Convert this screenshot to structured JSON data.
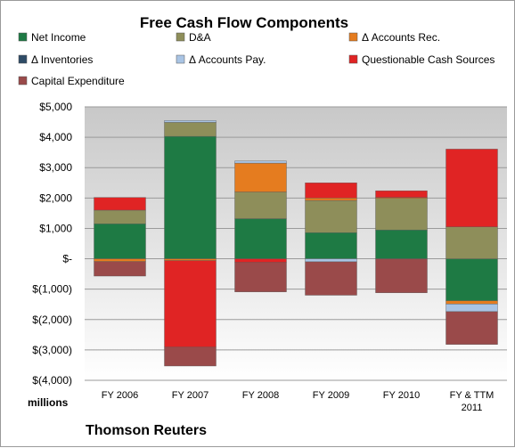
{
  "chart_data": {
    "type": "bar",
    "stacked": true,
    "title": "Free Cash Flow Components",
    "units_label": "millions",
    "source_label": "Thomson Reuters",
    "categories": [
      "FY 2006",
      "FY 2007",
      "FY 2008",
      "FY 2009",
      "FY 2010",
      "FY & TTM 2011"
    ],
    "ylim": [
      -4000,
      5000
    ],
    "yticks": [
      5000,
      4000,
      3000,
      2000,
      1000,
      0,
      -1000,
      -2000,
      -3000,
      -4000
    ],
    "ytick_labels": [
      "$5,000",
      "$4,000",
      "$3,000",
      "$2,000",
      "$1,000",
      "$-",
      "$(1,000)",
      "$(2,000)",
      "$(3,000)",
      "$(4,000)"
    ],
    "grid": true,
    "legend_position": "top",
    "series": [
      {
        "name": "Net Income",
        "color": "#1e7a44",
        "values": [
          1150,
          4030,
          1320,
          860,
          950,
          -1380
        ]
      },
      {
        "name": "D&A",
        "color": "#8e8e5a",
        "values": [
          450,
          460,
          880,
          1060,
          1040,
          1050
        ]
      },
      {
        "name": "Δ Accounts Rec.",
        "color": "#e57c1f",
        "values": [
          -90,
          -60,
          950,
          80,
          30,
          -110
        ]
      },
      {
        "name": "Δ Inventories",
        "color": "#2e4b66",
        "values": [
          0,
          0,
          0,
          0,
          0,
          0
        ]
      },
      {
        "name": "Δ Accounts Pay.",
        "color": "#a9c4e4",
        "values": [
          0,
          60,
          70,
          -100,
          0,
          -250
        ]
      },
      {
        "name": "Questionable Cash Sources",
        "color": "#e02424",
        "values": [
          420,
          -2850,
          -120,
          500,
          220,
          2560
        ]
      },
      {
        "name": "Capital Expenditure",
        "color": "#9a4a4a",
        "values": [
          -480,
          -620,
          -970,
          -1100,
          -1120,
          -1080
        ]
      }
    ]
  }
}
